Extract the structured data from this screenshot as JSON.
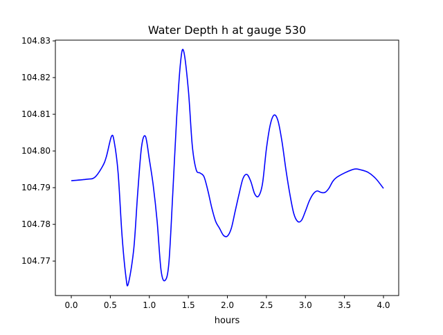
{
  "chart_data": {
    "type": "line",
    "title": "Water Depth h at gauge 530",
    "xlabel": "hours",
    "ylabel": "",
    "xlim": [
      -0.204,
      4.195
    ],
    "ylim": [
      104.7606,
      104.8302
    ],
    "xticks": [
      "0.0",
      "0.5",
      "1.0",
      "1.5",
      "2.0",
      "2.5",
      "3.0",
      "3.5",
      "4.0"
    ],
    "yticks": [
      "104.77",
      "104.78",
      "104.79",
      "104.80",
      "104.81",
      "104.82",
      "104.83"
    ],
    "grid": false,
    "series": [
      {
        "name": "h",
        "color": "#0000ff",
        "x": [
          0,
          0.2,
          0.3,
          0.4,
          0.45,
          0.515,
          0.55,
          0.6,
          0.65,
          0.7,
          0.73,
          0.8,
          0.85,
          0.9,
          0.95,
          1.0,
          1.05,
          1.1,
          1.15,
          1.2,
          1.25,
          1.3,
          1.35,
          1.4,
          1.44,
          1.5,
          1.55,
          1.6,
          1.65,
          1.7,
          1.75,
          1.8,
          1.85,
          1.9,
          1.95,
          2.0,
          2.05,
          2.1,
          2.15,
          2.2,
          2.25,
          2.3,
          2.35,
          2.4,
          2.45,
          2.5,
          2.55,
          2.6,
          2.65,
          2.7,
          2.75,
          2.8,
          2.85,
          2.9,
          2.95,
          3.0,
          3.05,
          3.1,
          3.15,
          3.2,
          3.25,
          3.3,
          3.35,
          3.4,
          3.5,
          3.6,
          3.65,
          3.7,
          3.8,
          3.9,
          4.0
        ],
        "y": [
          104.7919,
          104.7923,
          104.7928,
          104.7958,
          104.7985,
          104.804,
          104.8025,
          104.794,
          104.777,
          104.7657,
          104.7638,
          104.7732,
          104.7883,
          104.8011,
          104.804,
          104.7977,
          104.7906,
          104.7808,
          104.7675,
          104.7647,
          104.7694,
          104.7883,
          104.8091,
          104.8242,
          104.8272,
          104.8166,
          104.8015,
          104.7949,
          104.794,
          104.793,
          104.7892,
          104.7845,
          104.7808,
          104.7789,
          104.777,
          104.7768,
          104.7789,
          104.7836,
          104.7883,
          104.7925,
          104.7936,
          104.7917,
          104.7883,
          104.7877,
          104.7911,
          104.8006,
          104.8072,
          104.8098,
          104.8081,
          104.8025,
          104.7949,
          104.7883,
          104.783,
          104.7808,
          104.7811,
          104.7836,
          104.7864,
          104.7883,
          104.7891,
          104.7887,
          104.7887,
          104.7898,
          104.7917,
          104.7928,
          104.794,
          104.7949,
          104.7951,
          104.7949,
          104.7942,
          104.7925,
          104.7898
        ]
      }
    ]
  }
}
